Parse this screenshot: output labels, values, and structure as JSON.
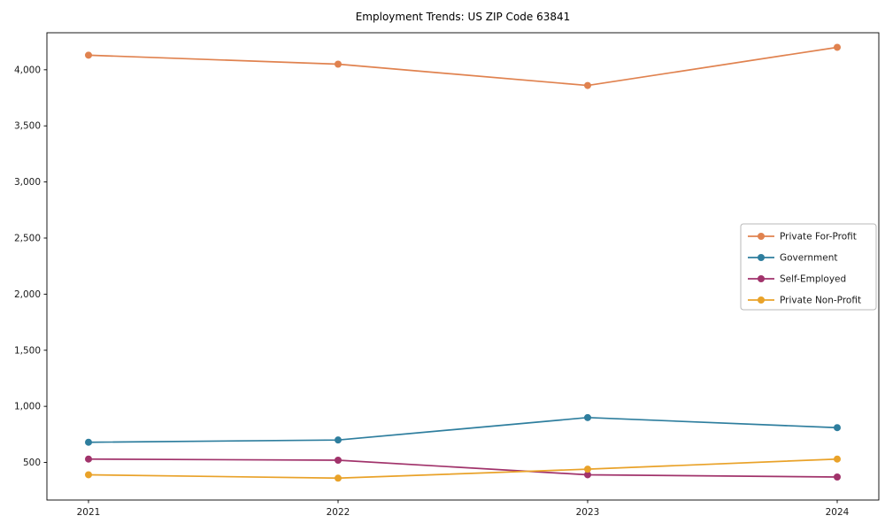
{
  "chart_data": {
    "type": "line",
    "title": "Employment Trends: US ZIP Code 63841",
    "xlabel": "",
    "ylabel": "",
    "x": [
      "2021",
      "2022",
      "2023",
      "2024"
    ],
    "series": [
      {
        "name": "Private For-Profit",
        "color": "#e0824f",
        "values": [
          4130,
          4050,
          3860,
          4200
        ]
      },
      {
        "name": "Government",
        "color": "#2e7e9e",
        "values": [
          680,
          700,
          900,
          810
        ]
      },
      {
        "name": "Self-Employed",
        "color": "#a1336b",
        "values": [
          530,
          520,
          390,
          370
        ]
      },
      {
        "name": "Private Non-Profit",
        "color": "#e9a229",
        "values": [
          390,
          360,
          440,
          530
        ]
      }
    ],
    "yticks": [
      500,
      1000,
      1500,
      2000,
      2500,
      3000,
      3500,
      4000
    ],
    "ytick_labels": [
      "500",
      "1,000",
      "1,500",
      "2,000",
      "2,500",
      "3,000",
      "3,500",
      "4,000"
    ],
    "ylim": [
      165,
      4330
    ],
    "grid": false,
    "legend_position": "center-right",
    "frame_color": "#000000"
  }
}
